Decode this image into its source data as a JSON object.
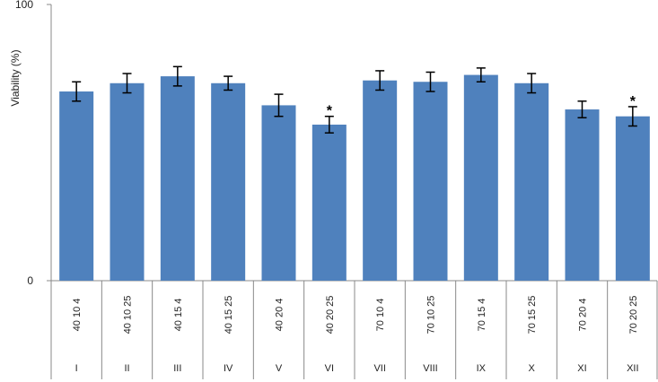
{
  "chart_data": {
    "type": "bar",
    "title": "",
    "xlabel": "",
    "ylabel": "Viability (%)",
    "ylim": [
      0,
      100
    ],
    "yticks": [
      "0",
      "100"
    ],
    "grid": false,
    "legend": "none",
    "bar_color": "#4f81bd",
    "categories": [
      "40 10 4",
      "40 10 25",
      "40 15 4",
      "40 15 25",
      "40 20 4",
      "40 20 25",
      "70 10 4",
      "70 10 25",
      "70 15 4",
      "70 15 25",
      "70 20 4",
      "70 20 25"
    ],
    "groups": [
      "I",
      "II",
      "III",
      "IV",
      "V",
      "VI",
      "VII",
      "VIII",
      "IX",
      "X",
      "XI",
      "XII"
    ],
    "values": [
      68.5,
      71.5,
      74,
      71.5,
      63.5,
      56.5,
      72.5,
      72,
      74.5,
      71.5,
      62,
      59.5
    ],
    "errors": [
      3.5,
      3.5,
      3.5,
      2.5,
      4,
      3,
      3.5,
      3.5,
      2.5,
      3.5,
      3,
      3.5
    ],
    "significance": [
      "",
      "",
      "",
      "",
      "",
      "*",
      "",
      "",
      "",
      "",
      "",
      "*"
    ]
  }
}
